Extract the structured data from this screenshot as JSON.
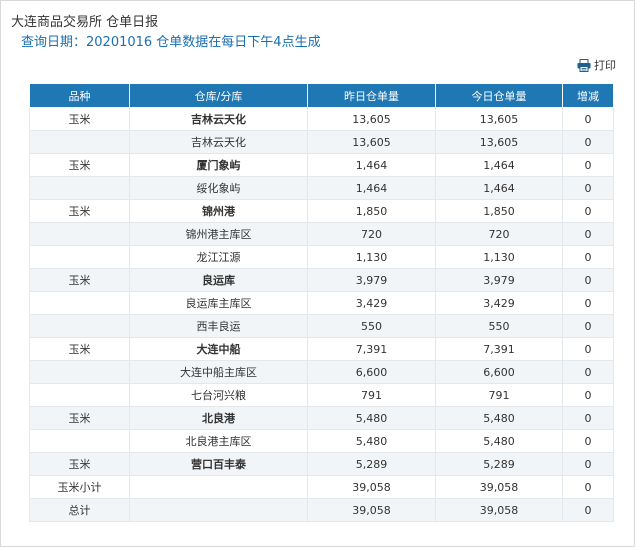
{
  "header": {
    "title": "大连商品交易所 仓单日报",
    "subtitle": "查询日期：20201016 仓单数据在每日下午4点生成",
    "print_label": "打印"
  },
  "table": {
    "columns": [
      "品种",
      "仓库/分库",
      "昨日仓单量",
      "今日仓单量",
      "增减"
    ],
    "rows": [
      {
        "variety": "玉米",
        "warehouse": "吉林云天化",
        "yesterday": "13,605",
        "today": "13,605",
        "change": "0",
        "bold": true
      },
      {
        "variety": "",
        "warehouse": "吉林云天化",
        "yesterday": "13,605",
        "today": "13,605",
        "change": "0",
        "bold": false
      },
      {
        "variety": "玉米",
        "warehouse": "厦门象屿",
        "yesterday": "1,464",
        "today": "1,464",
        "change": "0",
        "bold": true
      },
      {
        "variety": "",
        "warehouse": "绥化象屿",
        "yesterday": "1,464",
        "today": "1,464",
        "change": "0",
        "bold": false
      },
      {
        "variety": "玉米",
        "warehouse": "锦州港",
        "yesterday": "1,850",
        "today": "1,850",
        "change": "0",
        "bold": true
      },
      {
        "variety": "",
        "warehouse": "锦州港主库区",
        "yesterday": "720",
        "today": "720",
        "change": "0",
        "bold": false
      },
      {
        "variety": "",
        "warehouse": "龙江江源",
        "yesterday": "1,130",
        "today": "1,130",
        "change": "0",
        "bold": false
      },
      {
        "variety": "玉米",
        "warehouse": "良运库",
        "yesterday": "3,979",
        "today": "3,979",
        "change": "0",
        "bold": true
      },
      {
        "variety": "",
        "warehouse": "良运库主库区",
        "yesterday": "3,429",
        "today": "3,429",
        "change": "0",
        "bold": false
      },
      {
        "variety": "",
        "warehouse": "西丰良运",
        "yesterday": "550",
        "today": "550",
        "change": "0",
        "bold": false
      },
      {
        "variety": "玉米",
        "warehouse": "大连中船",
        "yesterday": "7,391",
        "today": "7,391",
        "change": "0",
        "bold": true
      },
      {
        "variety": "",
        "warehouse": "大连中船主库区",
        "yesterday": "6,600",
        "today": "6,600",
        "change": "0",
        "bold": false
      },
      {
        "variety": "",
        "warehouse": "七台河兴粮",
        "yesterday": "791",
        "today": "791",
        "change": "0",
        "bold": false
      },
      {
        "variety": "玉米",
        "warehouse": "北良港",
        "yesterday": "5,480",
        "today": "5,480",
        "change": "0",
        "bold": true
      },
      {
        "variety": "",
        "warehouse": "北良港主库区",
        "yesterday": "5,480",
        "today": "5,480",
        "change": "0",
        "bold": false
      },
      {
        "variety": "玉米",
        "warehouse": "营口百丰泰",
        "yesterday": "5,289",
        "today": "5,289",
        "change": "0",
        "bold": true
      },
      {
        "variety": "玉米小计",
        "warehouse": "",
        "yesterday": "39,058",
        "today": "39,058",
        "change": "0",
        "bold": false
      },
      {
        "variety": "总计",
        "warehouse": "",
        "yesterday": "39,058",
        "today": "39,058",
        "change": "0",
        "bold": false
      }
    ]
  },
  "colors": {
    "header_bg": "#1f78b4",
    "subtitle": "#1a6fb0",
    "stripe": "#f1f5f8"
  },
  "icons": {
    "print": "printer-icon"
  }
}
